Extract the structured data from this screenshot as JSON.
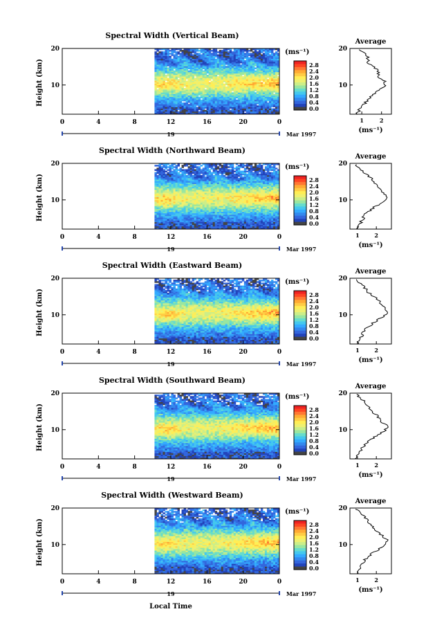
{
  "figure": {
    "xlabel": "Local Time",
    "date_label": "Mar 1997",
    "day_label": "19",
    "unit_label": "(ms⁻¹)",
    "average_title": "Average",
    "ylabel": "Height (km)"
  },
  "colorbar": {
    "ticks": [
      "2.8",
      "2.4",
      "2.0",
      "1.6",
      "1.2",
      "0.8",
      "0.4",
      "0.0"
    ],
    "colors": [
      "#ee2222",
      "#ff4422",
      "#ff7733",
      "#ffaa33",
      "#ffcc44",
      "#ffee55",
      "#eef070",
      "#ccee88",
      "#99e6a0",
      "#66dccc",
      "#44c8ee",
      "#33aaff",
      "#3388ee",
      "#3366dd",
      "#2244bb",
      "#444444"
    ]
  },
  "chart_data": [
    {
      "type": "heatmap",
      "title": "Spectral Width (Vertical Beam)",
      "xlabel": "Local Time",
      "ylabel": "Height (km)",
      "xlim": [
        0,
        24
      ],
      "ylim": [
        2,
        20
      ],
      "x_ticks": [
        "0",
        "4",
        "8",
        "12",
        "16",
        "20",
        "0"
      ],
      "y_ticks": [
        "20",
        "10"
      ],
      "data_start_time": 10.2,
      "colorbar_range": [
        0.0,
        2.8
      ],
      "average_profile": {
        "xlabel": "(ms⁻¹)",
        "x_ticks": [
          "1",
          "2"
        ],
        "xlim": [
          0.4,
          2.5
        ],
        "heights": [
          2,
          4,
          6,
          8,
          10,
          11,
          12,
          14,
          16,
          18,
          20
        ],
        "values": [
          0.7,
          1.0,
          1.3,
          1.7,
          2.2,
          2.2,
          1.9,
          1.8,
          1.3,
          1.3,
          0.8
        ]
      }
    },
    {
      "type": "heatmap",
      "title": "Spectral Width (Northward Beam)",
      "xlabel": "Local Time",
      "ylabel": "Height (km)",
      "xlim": [
        0,
        24
      ],
      "ylim": [
        2,
        20
      ],
      "x_ticks": [
        "0",
        "4",
        "8",
        "12",
        "16",
        "20",
        "0"
      ],
      "y_ticks": [
        "20",
        "10"
      ],
      "data_start_time": 10.2,
      "colorbar_range": [
        0.0,
        2.8
      ],
      "average_profile": {
        "xlabel": "(ms⁻¹)",
        "x_ticks": [
          "1",
          "2"
        ],
        "xlim": [
          0.6,
          2.8
        ],
        "heights": [
          2,
          4,
          6,
          8,
          10,
          11,
          12,
          14,
          16,
          18,
          20
        ],
        "values": [
          1.0,
          1.2,
          1.4,
          1.9,
          2.5,
          2.6,
          2.3,
          2.0,
          1.7,
          1.2,
          0.9
        ]
      }
    },
    {
      "type": "heatmap",
      "title": "Spectral Width (Eastward Beam)",
      "xlabel": "Local Time",
      "ylabel": "Height (km)",
      "xlim": [
        0,
        24
      ],
      "ylim": [
        2,
        20
      ],
      "x_ticks": [
        "0",
        "4",
        "8",
        "12",
        "16",
        "20",
        "0"
      ],
      "y_ticks": [
        "20",
        "10"
      ],
      "data_start_time": 10.2,
      "colorbar_range": [
        0.0,
        2.8
      ],
      "average_profile": {
        "xlabel": "(ms⁻¹)",
        "x_ticks": [
          "1",
          "2"
        ],
        "xlim": [
          0.6,
          2.8
        ],
        "heights": [
          2,
          4,
          6,
          8,
          10,
          11,
          12,
          14,
          16,
          18,
          20
        ],
        "values": [
          1.0,
          1.2,
          1.4,
          1.9,
          2.5,
          2.6,
          2.4,
          2.1,
          1.6,
          1.3,
          0.9
        ]
      }
    },
    {
      "type": "heatmap",
      "title": "Spectral Width (Southward Beam)",
      "xlabel": "Local Time",
      "ylabel": "Height (km)",
      "xlim": [
        0,
        24
      ],
      "ylim": [
        2,
        20
      ],
      "x_ticks": [
        "0",
        "4",
        "8",
        "12",
        "16",
        "20",
        "0"
      ],
      "y_ticks": [
        "20",
        "10"
      ],
      "data_start_time": 10.2,
      "colorbar_range": [
        0.0,
        2.8
      ],
      "average_profile": {
        "xlabel": "(ms⁻¹)",
        "x_ticks": [
          "1",
          "2"
        ],
        "xlim": [
          0.6,
          2.8
        ],
        "heights": [
          2,
          4,
          6,
          8,
          10,
          11,
          12,
          14,
          16,
          18,
          20
        ],
        "values": [
          0.9,
          1.1,
          1.4,
          1.9,
          2.5,
          2.6,
          2.3,
          2.0,
          1.6,
          1.3,
          0.9
        ]
      }
    },
    {
      "type": "heatmap",
      "title": "Spectral Width (Westward Beam)",
      "xlabel": "Local Time",
      "ylabel": "Height (km)",
      "xlim": [
        0,
        24
      ],
      "ylim": [
        2,
        20
      ],
      "x_ticks": [
        "0",
        "4",
        "8",
        "12",
        "16",
        "20",
        "0"
      ],
      "y_ticks": [
        "20",
        "10"
      ],
      "data_start_time": 10.2,
      "colorbar_range": [
        0.0,
        2.8
      ],
      "average_profile": {
        "xlabel": "(ms⁻¹)",
        "x_ticks": [
          "1",
          "2"
        ],
        "xlim": [
          0.6,
          2.8
        ],
        "heights": [
          2,
          4,
          6,
          8,
          10,
          11,
          12,
          14,
          16,
          18,
          20
        ],
        "values": [
          1.0,
          1.2,
          1.4,
          1.9,
          2.5,
          2.6,
          2.4,
          2.0,
          1.6,
          1.3,
          0.9
        ]
      }
    }
  ]
}
